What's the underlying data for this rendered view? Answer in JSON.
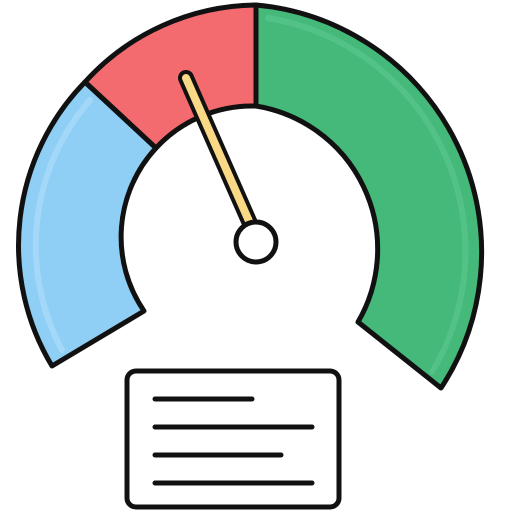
{
  "illustration": {
    "icon": "speedometer-gauge-icon",
    "gauge": {
      "zones": [
        {
          "name": "blue-zone",
          "color": "#8FCFF5"
        },
        {
          "name": "red-zone",
          "color": "#F36B6E"
        },
        {
          "name": "green-zone",
          "color": "#44B97A"
        }
      ],
      "needle": {
        "color": "#F9D886",
        "hub_color": "#FFFFFF"
      },
      "outline_color": "#111111"
    },
    "info_card": {
      "icon": "text-lines-icon",
      "background": "#FFFFFF",
      "line_count": 4
    }
  }
}
